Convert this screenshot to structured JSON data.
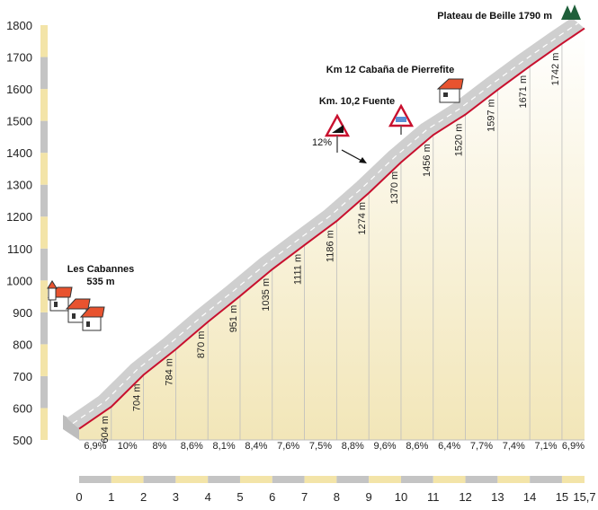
{
  "chart_data": {
    "type": "area",
    "title": "",
    "xlabel": "",
    "ylabel": "",
    "xlim": [
      0,
      15.7
    ],
    "ylim": [
      500,
      1800
    ],
    "y_ticks": [
      "500",
      "600",
      "700",
      "800",
      "900",
      "1000",
      "1100",
      "1200",
      "1300",
      "1400",
      "1500",
      "1600",
      "1700",
      "1800"
    ],
    "x_ticks": [
      "0",
      "1",
      "2",
      "3",
      "4",
      "5",
      "6",
      "7",
      "8",
      "9",
      "10",
      "11",
      "12",
      "13",
      "14",
      "15",
      "15,7"
    ],
    "grid": false,
    "legend": "none",
    "profile": [
      {
        "km": 0,
        "alt": 535
      },
      {
        "km": 1,
        "alt": 604
      },
      {
        "km": 2,
        "alt": 704
      },
      {
        "km": 3,
        "alt": 784
      },
      {
        "km": 4,
        "alt": 870
      },
      {
        "km": 5,
        "alt": 951
      },
      {
        "km": 6,
        "alt": 1035
      },
      {
        "km": 7,
        "alt": 1111
      },
      {
        "km": 8,
        "alt": 1186
      },
      {
        "km": 9,
        "alt": 1274
      },
      {
        "km": 10,
        "alt": 1370
      },
      {
        "km": 11,
        "alt": 1456
      },
      {
        "km": 12,
        "alt": 1520
      },
      {
        "km": 13,
        "alt": 1597
      },
      {
        "km": 14,
        "alt": 1671
      },
      {
        "km": 15,
        "alt": 1742
      },
      {
        "km": 15.7,
        "alt": 1790
      }
    ],
    "altitude_labels": [
      {
        "km": 1,
        "label": "604 m"
      },
      {
        "km": 2,
        "label": "704 m"
      },
      {
        "km": 3,
        "label": "784 m"
      },
      {
        "km": 4,
        "label": "870 m"
      },
      {
        "km": 5,
        "label": "951 m"
      },
      {
        "km": 6,
        "label": "1035 m"
      },
      {
        "km": 7,
        "label": "1111 m"
      },
      {
        "km": 8,
        "label": "1186 m"
      },
      {
        "km": 9,
        "label": "1274 m"
      },
      {
        "km": 10,
        "label": "1370 m"
      },
      {
        "km": 11,
        "label": "1456 m"
      },
      {
        "km": 12,
        "label": "1520 m"
      },
      {
        "km": 13,
        "label": "1597 m"
      },
      {
        "km": 14,
        "label": "1671 m"
      },
      {
        "km": 15,
        "label": "1742 m"
      }
    ],
    "gradients": [
      "6,9%",
      "10%",
      "8%",
      "8,6%",
      "8,1%",
      "8,4%",
      "7,6%",
      "7,5%",
      "8,8%",
      "9,6%",
      "8,6%",
      "6,4%",
      "7,7%",
      "7,4%",
      "7,1%",
      "6,9%"
    ],
    "annotations": [
      {
        "id": "start",
        "text": "Les Cabannes",
        "text2": "535 m"
      },
      {
        "id": "summit",
        "text": "Plateau de Beille 1790 m"
      },
      {
        "id": "cabana",
        "text": "Km 12 Cabaña de Pierrefite"
      },
      {
        "id": "fuente",
        "text": "Km. 10,2 Fuente"
      },
      {
        "id": "steep",
        "text": "12%"
      }
    ],
    "colors": {
      "profile_line": "#c8102e",
      "road_band": "#cfcfcf",
      "area_fill_top": "#ffffff",
      "area_fill_bottom": "#f2e6b8",
      "axis_band_a": "#f3e4a8",
      "axis_band_b": "#c4c4c4",
      "house_roof": "#e8532f",
      "summit_trees": "#1f5f3a"
    }
  }
}
